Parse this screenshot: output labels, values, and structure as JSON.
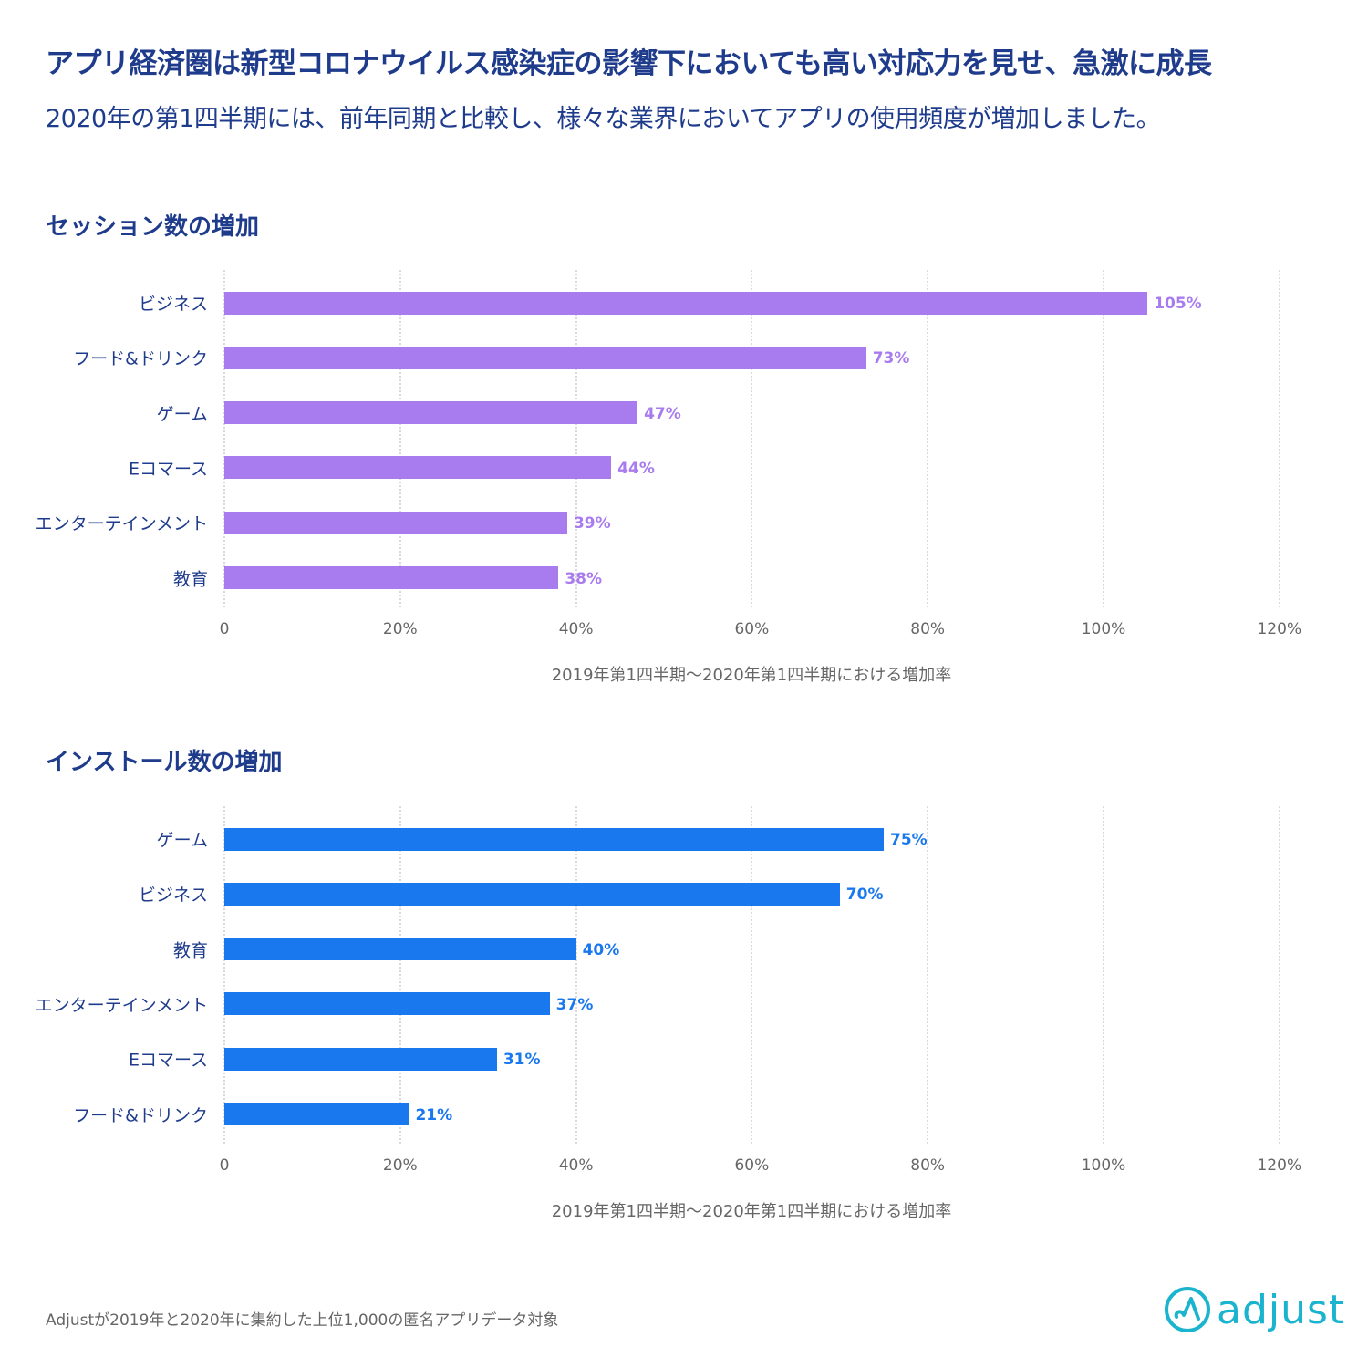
{
  "title": "アプリ経済圏は新型コロナウイルス感染症の影響下においても高い対応力を見せ、急激に成長",
  "subtitle": "2020年の第1四半期には、前年同期と比較し、様々な業界においてアプリの使用頻度が増加しました。",
  "footer": "Adjustが2019年と2020年に集約した上位1,000の匿名アプリデータ対象",
  "logo_text": "adjust",
  "colors": {
    "session": "#a87bef",
    "install": "#1a78ef",
    "title": "#1f3c8c",
    "logo": "#1ab4cf"
  },
  "chart_data": [
    {
      "type": "bar",
      "orientation": "horizontal",
      "title": "セッション数の増加",
      "categories": [
        "ビジネス",
        "フード&ドリンク",
        "ゲーム",
        "Eコマース",
        "エンターテインメント",
        "教育"
      ],
      "values": [
        105,
        73,
        47,
        44,
        39,
        38
      ],
      "value_labels": [
        "105%",
        "73%",
        "47%",
        "44%",
        "39%",
        "38%"
      ],
      "xlabel": "2019年第1四半期〜2020年第1四半期における増加率",
      "xlim": [
        0,
        120
      ],
      "ticks": [
        "0",
        "20%",
        "40%",
        "60%",
        "80%",
        "100%",
        "120%"
      ],
      "grid": true
    },
    {
      "type": "bar",
      "orientation": "horizontal",
      "title": "インストール数の増加",
      "categories": [
        "ゲーム",
        "ビジネス",
        "教育",
        "エンターテインメント",
        "Eコマース",
        "フード&ドリンク"
      ],
      "values": [
        75,
        70,
        40,
        37,
        31,
        21
      ],
      "value_labels": [
        "75%",
        "70%",
        "40%",
        "37%",
        "31%",
        "21%"
      ],
      "xlabel": "2019年第1四半期〜2020年第1四半期における増加率",
      "xlim": [
        0,
        120
      ],
      "ticks": [
        "0",
        "20%",
        "40%",
        "60%",
        "80%",
        "100%",
        "120%"
      ],
      "grid": true
    }
  ]
}
